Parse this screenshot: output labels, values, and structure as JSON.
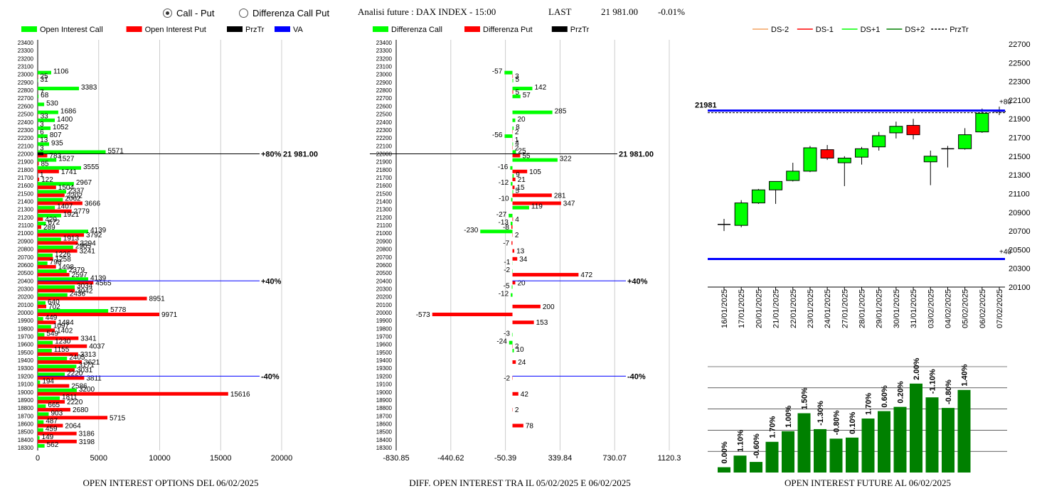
{
  "header": {
    "radio_call_put": "Call - Put",
    "radio_diff": "Differenza Call Put",
    "title": "Analisi future : DAX INDEX - 15:00",
    "last_label": "LAST",
    "last_value": "21 981.00",
    "last_change": "-0.01%"
  },
  "colors": {
    "green": "#00ff00",
    "red": "#ff0000",
    "black": "#000000",
    "blue": "#0000ff",
    "dark_green": "#008000"
  },
  "chart_data": [
    {
      "type": "bar",
      "title": "OPEN INTEREST OPTIONS DEL 06/02/2025",
      "orientation": "horizontal",
      "legend": [
        "Open Interest Call",
        "Open Interest Put",
        "PrzTr",
        "VA"
      ],
      "strikes": [
        23400,
        23300,
        23200,
        23100,
        23000,
        22900,
        22800,
        22700,
        22600,
        22500,
        22400,
        22300,
        22200,
        22100,
        22000,
        21900,
        21800,
        21700,
        21600,
        21500,
        21400,
        21300,
        21200,
        21100,
        21000,
        20900,
        20800,
        20700,
        20600,
        20500,
        20400,
        20300,
        20200,
        20100,
        20000,
        19900,
        19800,
        19700,
        19600,
        19500,
        19400,
        19300,
        19200,
        19100,
        19000,
        18900,
        18800,
        18700,
        18600,
        18500,
        18400,
        18300
      ],
      "series": [
        {
          "name": "Open Interest Call",
          "values": [
            0,
            0,
            0,
            0,
            1106,
            31,
            3383,
            68,
            530,
            1686,
            1400,
            1052,
            807,
            935,
            5571,
            1527,
            3555,
            1,
            2967,
            2337,
            2062,
            1407,
            1921,
            672,
            4139,
            1913,
            2905,
            1226,
            798,
            2379,
            4139,
            3034,
            2436,
            640,
            5778,
            449,
            1097,
            549,
            1230,
            1155,
            2405,
            3171,
            2220,
            194,
            3200,
            1811,
            665,
            903,
            487,
            459,
            149,
            562
          ]
        },
        {
          "name": "Open Interest Put",
          "values": [
            0,
            0,
            0,
            0,
            25,
            0,
            7,
            0,
            0,
            33,
            3,
            6,
            13,
            3,
            783,
            85,
            1741,
            122,
            1504,
            2202,
            3666,
            2779,
            429,
            289,
            3792,
            3294,
            3241,
            1258,
            1498,
            2597,
            4565,
            3042,
            8951,
            702,
            9971,
            1484,
            1402,
            3341,
            4037,
            3313,
            3621,
            3031,
            3811,
            2586,
            15616,
            2220,
            2680,
            5715,
            2064,
            3186,
            3198,
            0
          ]
        }
      ],
      "annotations": [
        {
          "strike": 22000,
          "label": "+80%"
        },
        {
          "strike": 22000,
          "label": "21 981.00"
        },
        {
          "strike": 20400,
          "label": "+40%"
        },
        {
          "strike": 19200,
          "label": "-40%"
        }
      ],
      "xticks": [
        "0",
        "5000",
        "10000",
        "15000",
        "20000"
      ],
      "xlim": [
        0,
        20000
      ]
    },
    {
      "type": "bar",
      "title": "DIFF. OPEN INTEREST TRA IL 05/02/2025 E 06/02/2025",
      "orientation": "horizontal",
      "legend": [
        "Differenza Call",
        "Differenza Put",
        "PrzTr"
      ],
      "strikes": [
        23400,
        23300,
        23200,
        23100,
        23000,
        22900,
        22800,
        22700,
        22600,
        22500,
        22400,
        22300,
        22200,
        22100,
        22000,
        21900,
        21800,
        21700,
        21600,
        21500,
        21400,
        21300,
        21200,
        21100,
        21000,
        20900,
        20800,
        20700,
        20600,
        20500,
        20400,
        20300,
        20200,
        20100,
        20000,
        19900,
        19800,
        19700,
        19600,
        19500,
        19400,
        19300,
        19200,
        19100,
        19000,
        18900,
        18800,
        18700,
        18600,
        18500,
        18400,
        18300
      ],
      "series": [
        {
          "name": "Differenza Call",
          "values": [
            0,
            0,
            0,
            0,
            -57,
            5,
            142,
            57,
            0,
            285,
            20,
            8,
            -56,
            4,
            25,
            322,
            -16,
            9,
            -12,
            5,
            -10,
            119,
            -27,
            -13,
            -230,
            0,
            0,
            0,
            -1,
            -2,
            0,
            -5,
            -12,
            0,
            0,
            0,
            0,
            -3,
            -24,
            10,
            0,
            0,
            0,
            0,
            0,
            0,
            0,
            0,
            0,
            0,
            0,
            0
          ]
        },
        {
          "name": "Differenza Put",
          "values": [
            0,
            0,
            0,
            0,
            3,
            0,
            5,
            0,
            0,
            0,
            0,
            2,
            1,
            2,
            55,
            0,
            105,
            21,
            15,
            281,
            347,
            0,
            4,
            -8,
            2,
            -7,
            13,
            34,
            0,
            472,
            20,
            0,
            0,
            200,
            -573,
            153,
            0,
            0,
            2,
            0,
            24,
            0,
            -2,
            0,
            42,
            0,
            2,
            0,
            78,
            0,
            0,
            0
          ]
        }
      ],
      "annotations": [
        {
          "strike": 22000,
          "label": "21 981.00"
        },
        {
          "strike": 20400,
          "label": "+40%"
        },
        {
          "strike": 19200,
          "label": "-40%"
        }
      ],
      "xticks": [
        "-830.85",
        "-440.62",
        "-50.39",
        "339.84",
        "730.07",
        "1120.3"
      ],
      "xlim": [
        -830.85,
        1120.3
      ]
    },
    {
      "type": "candlestick",
      "legend": [
        "DS-2",
        "DS-1",
        "DS+1",
        "DS+2",
        "PrzTr"
      ],
      "dates": [
        "16/01/2025",
        "17/01/2025",
        "20/01/2025",
        "21/01/2025",
        "22/01/2025",
        "23/01/2025",
        "24/01/2025",
        "27/01/2025",
        "28/01/2025",
        "29/01/2025",
        "30/01/2025",
        "31/01/2025",
        "03/02/2025",
        "04/02/2025",
        "05/02/2025",
        "06/02/2025",
        "07/02/2025"
      ],
      "ohlc": [
        {
          "open": 20770,
          "high": 20830,
          "low": 20700,
          "close": 20770
        },
        {
          "open": 20760,
          "high": 21030,
          "low": 20740,
          "close": 21000
        },
        {
          "open": 21000,
          "high": 21150,
          "low": 20990,
          "close": 21140
        },
        {
          "open": 21140,
          "high": 21230,
          "low": 20990,
          "close": 21230
        },
        {
          "open": 21240,
          "high": 21430,
          "low": 21230,
          "close": 21340
        },
        {
          "open": 21340,
          "high": 21610,
          "low": 21330,
          "close": 21590
        },
        {
          "open": 21570,
          "high": 21620,
          "low": 21460,
          "close": 21480
        },
        {
          "open": 21430,
          "high": 21500,
          "low": 21180,
          "close": 21480
        },
        {
          "open": 21490,
          "high": 21600,
          "low": 21410,
          "close": 21580
        },
        {
          "open": 21600,
          "high": 21760,
          "low": 21560,
          "close": 21720
        },
        {
          "open": 21750,
          "high": 21870,
          "low": 21690,
          "close": 21820
        },
        {
          "open": 21830,
          "high": 21900,
          "low": 21680,
          "close": 21730
        },
        {
          "open": 21440,
          "high": 21560,
          "low": 21190,
          "close": 21500
        },
        {
          "open": 21570,
          "high": 21610,
          "low": 21380,
          "close": 21580
        },
        {
          "open": 21580,
          "high": 21800,
          "low": 21570,
          "close": 21730
        },
        {
          "open": 21760,
          "high": 22010,
          "low": 21750,
          "close": 21960
        },
        {
          "open": 21980,
          "high": 22030,
          "low": 21940,
          "close": 21980
        }
      ],
      "price_line": 21981,
      "price_label": "21981",
      "upper_band": 21990,
      "upper_label": "+80",
      "lower_band": 20400,
      "lower_label": "+40",
      "yticks": [
        "22700",
        "22500",
        "22300",
        "22100",
        "21900",
        "21700",
        "21500",
        "21300",
        "21100",
        "20900",
        "20700",
        "20500",
        "20300",
        "20100"
      ],
      "ylim": [
        20100,
        22700
      ]
    },
    {
      "type": "bar",
      "title": "OPEN INTEREST FUTURE AL 06/02/2025",
      "values": [
        0.5,
        1.6,
        1.0,
        2.9,
        3.9,
        5.6,
        4.1,
        3.2,
        3.3,
        5.1,
        5.8,
        6.2,
        8.4,
        7.1,
        6.1,
        7.8
      ],
      "labels": [
        "0.00%",
        "1.10%",
        "-0.60%",
        "1.70%",
        "1.00%",
        "1.50%",
        "-1.30%",
        "-0.80%",
        "0.10%",
        "1.70%",
        "0.60%",
        "0.20%",
        "2.00%",
        "-1.10%",
        "-0.80%",
        "1.40%"
      ],
      "ylim": [
        0,
        10
      ]
    }
  ]
}
